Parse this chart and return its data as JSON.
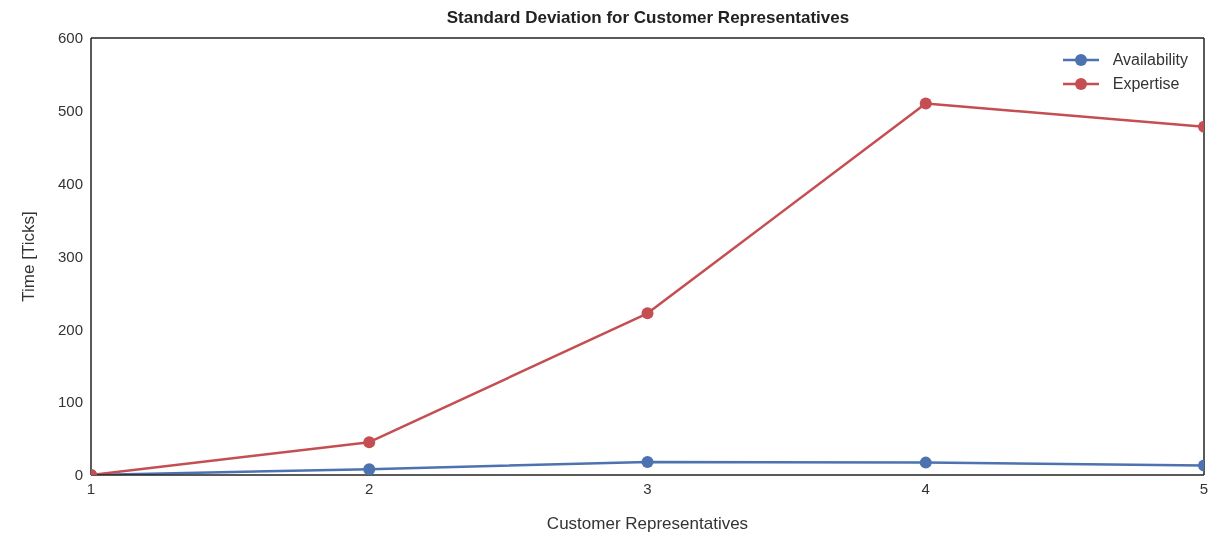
{
  "chart_data": {
    "type": "line",
    "title": "Standard Deviation for Customer Representatives",
    "xlabel": "Customer Representatives",
    "ylabel": "Time [Ticks]",
    "x": [
      1,
      2,
      3,
      4,
      5
    ],
    "series": [
      {
        "name": "Availability",
        "color": "#4c72b0",
        "values": [
          0,
          8,
          18,
          17,
          13
        ]
      },
      {
        "name": "Expertise",
        "color": "#c44e52",
        "values": [
          0,
          45,
          222,
          510,
          478
        ]
      }
    ],
    "xlim": [
      1,
      5
    ],
    "xticks": [
      1,
      2,
      3,
      4,
      5
    ],
    "ylim": [
      0,
      600
    ],
    "yticks": [
      0,
      100,
      200,
      300,
      400,
      500,
      600
    ],
    "grid": false,
    "legend": "top right",
    "marker": "circle",
    "line_style": "solid"
  }
}
